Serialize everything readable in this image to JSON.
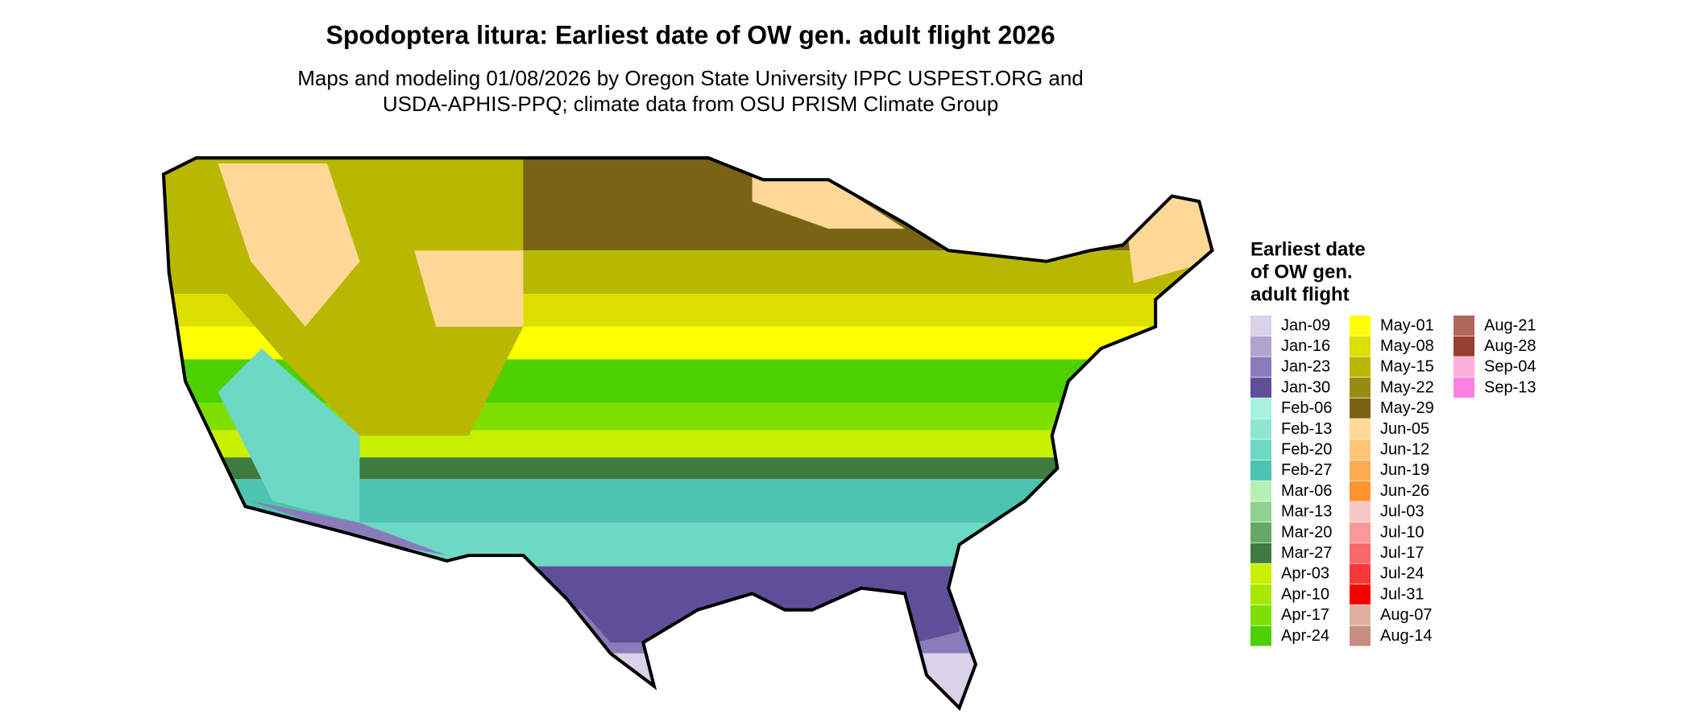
{
  "title": "Spodoptera litura: Earliest date of OW gen. adult flight 2026",
  "subtitle": [
    "Maps and modeling 01/08/2026 by Oregon State University IPPC USPEST.ORG and",
    "USDA-APHIS-PPQ; climate data from OSU PRISM Climate Group"
  ],
  "legend": {
    "title": [
      "Earliest date",
      "of OW gen.",
      "adult flight"
    ],
    "items": [
      {
        "label": "Jan-09",
        "color": "#d9d2e9"
      },
      {
        "label": "Jan-16",
        "color": "#b1a5d0"
      },
      {
        "label": "Jan-23",
        "color": "#8a7bbb"
      },
      {
        "label": "Jan-30",
        "color": "#5f4f98"
      },
      {
        "label": "Feb-06",
        "color": "#a6f2de"
      },
      {
        "label": "Feb-13",
        "color": "#8ee6d0"
      },
      {
        "label": "Feb-20",
        "color": "#6dd8c3"
      },
      {
        "label": "Feb-27",
        "color": "#4dc4b0"
      },
      {
        "label": "Mar-06",
        "color": "#b4f0b4"
      },
      {
        "label": "Mar-13",
        "color": "#8fd18f"
      },
      {
        "label": "Mar-20",
        "color": "#66a866"
      },
      {
        "label": "Mar-27",
        "color": "#3f7a3f"
      },
      {
        "label": "Apr-03",
        "color": "#c8f000"
      },
      {
        "label": "Apr-10",
        "color": "#a8e800"
      },
      {
        "label": "Apr-17",
        "color": "#7fe000"
      },
      {
        "label": "Apr-24",
        "color": "#4cd000"
      },
      {
        "label": "May-01",
        "color": "#ffff00"
      },
      {
        "label": "May-08",
        "color": "#dede00"
      },
      {
        "label": "May-15",
        "color": "#b8b800"
      },
      {
        "label": "May-22",
        "color": "#9a8c10"
      },
      {
        "label": "May-29",
        "color": "#7a6414"
      },
      {
        "label": "Jun-05",
        "color": "#ffd898"
      },
      {
        "label": "Jun-12",
        "color": "#ffc478"
      },
      {
        "label": "Jun-19",
        "color": "#ffac50"
      },
      {
        "label": "Jun-26",
        "color": "#ff9430"
      },
      {
        "label": "Jul-03",
        "color": "#f8c8c8"
      },
      {
        "label": "Jul-10",
        "color": "#f89898"
      },
      {
        "label": "Jul-17",
        "color": "#f86868"
      },
      {
        "label": "Jul-24",
        "color": "#f83838"
      },
      {
        "label": "Jul-31",
        "color": "#f80000"
      },
      {
        "label": "Aug-07",
        "color": "#e0b0a0"
      },
      {
        "label": "Aug-14",
        "color": "#c88c80"
      },
      {
        "label": "Aug-21",
        "color": "#b06858"
      },
      {
        "label": "Aug-28",
        "color": "#984030"
      },
      {
        "label": "Sep-04",
        "color": "#ffb0d8"
      },
      {
        "label": "Sep-13",
        "color": "#ff80e0"
      }
    ]
  }
}
